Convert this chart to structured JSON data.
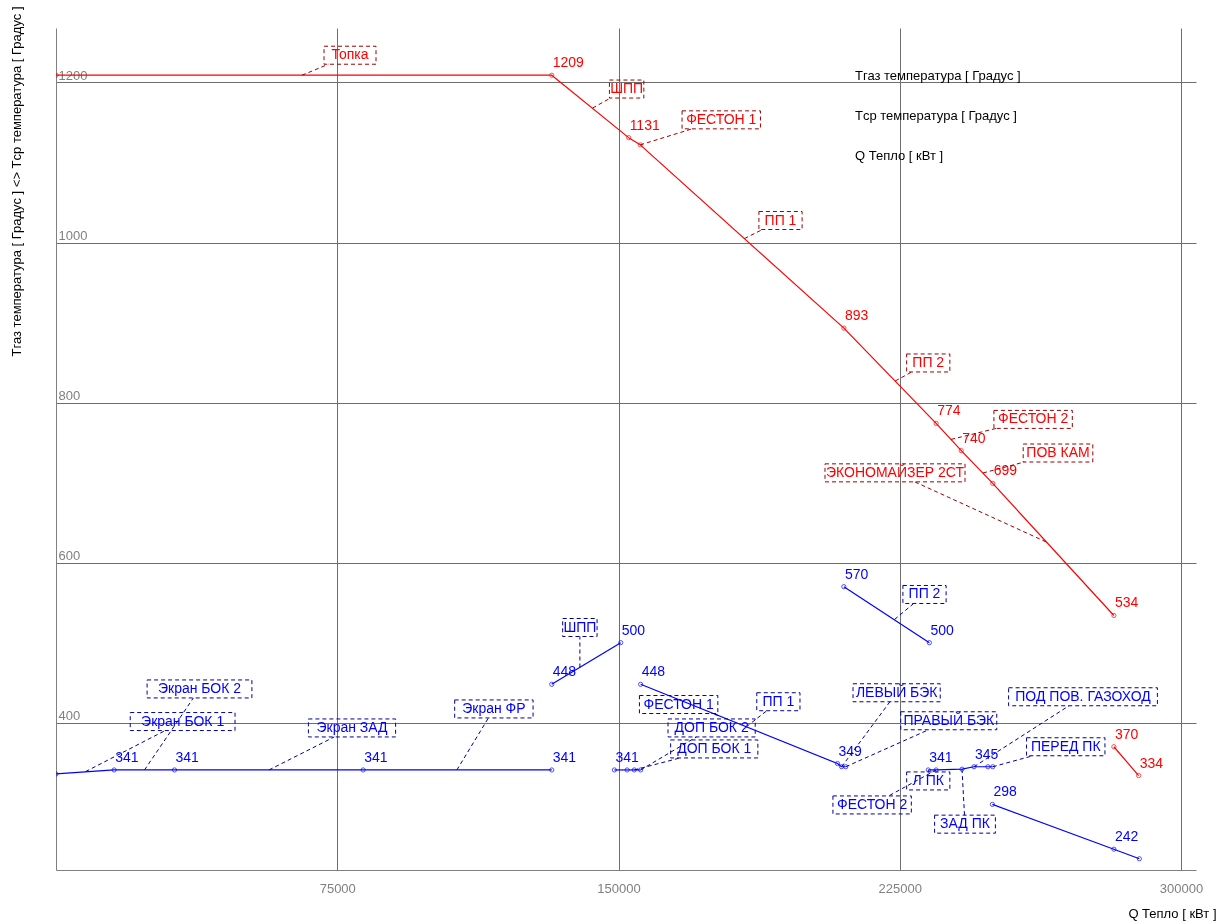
{
  "chart_data": {
    "type": "line",
    "xlabel": "Q Тепло [ кВт ]",
    "ylabel": "Tгаз температура [ Градус ] <> Tср температура [ Градус ]",
    "xlim": [
      0,
      304000
    ],
    "ylim": [
      216,
      1268
    ],
    "xticks": [
      75000,
      150000,
      225000,
      300000
    ],
    "yticks": [
      400,
      600,
      800,
      1000,
      1200
    ],
    "grid": true,
    "marker": "circle",
    "series": [
      {
        "color": "#ff0000",
        "x": [
          0,
          132200,
          152700,
          155800,
          210100,
          234700,
          241400,
          249800,
          282100
        ],
        "values": [
          1209,
          1209,
          1131,
          1122,
          893,
          774,
          740,
          699,
          534
        ],
        "value_labels": [
          null,
          "1209",
          "1131",
          null,
          "893",
          "774",
          "740",
          "699",
          "534"
        ]
      },
      {
        "color": "#ff0000",
        "x": [
          282100,
          288700
        ],
        "values": [
          370,
          334
        ],
        "value_labels": [
          "370",
          "334"
        ]
      },
      {
        "color": "#0000ff",
        "x": [
          0,
          15500,
          31600,
          81900,
          132200
        ],
        "values": [
          336,
          341,
          341,
          341,
          341
        ],
        "value_labels": [
          null,
          "341",
          "341",
          "341",
          "341"
        ]
      },
      {
        "color": "#0000ff",
        "x": [
          132200,
          150600
        ],
        "values": [
          448,
          500
        ],
        "value_labels": [
          "448",
          "500"
        ]
      },
      {
        "color": "#0000ff",
        "x": [
          148900,
          152300,
          154200,
          155900
        ],
        "values": [
          341,
          341,
          341,
          341
        ],
        "value_labels": [
          "341",
          null,
          null,
          null
        ]
      },
      {
        "color": "#0000ff",
        "x": [
          155900,
          208400,
          209500,
          210600
        ],
        "values": [
          448,
          349,
          345,
          345
        ],
        "value_labels": [
          "448",
          "349",
          null,
          null
        ]
      },
      {
        "color": "#0000ff",
        "x": [
          210100,
          232900
        ],
        "values": [
          570,
          500
        ],
        "value_labels": [
          "570",
          "500"
        ]
      },
      {
        "color": "#0000ff",
        "x": [
          232600,
          234700,
          241600,
          244800,
          248500,
          249800
        ],
        "values": [
          341,
          341,
          342,
          345,
          345,
          345
        ],
        "value_labels": [
          "341",
          null,
          null,
          "345",
          null,
          null
        ]
      },
      {
        "color": "#0000ff",
        "x": [
          249700,
          282100,
          288900
        ],
        "values": [
          298,
          242,
          230
        ],
        "value_labels": [
          "298",
          "242",
          null
        ]
      }
    ],
    "annotations": [
      "Tгаз температура [ Градус ]",
      "Tср температура [ Градус ]",
      "Q Тепло [ кВт ]",
      {
        "text": "Топка",
        "x": 65600,
        "y": 1209
      },
      {
        "text": "ШПП",
        "x": 143100,
        "y": 1168
      },
      {
        "text": "ФЕСТОН 1",
        "x": 155800,
        "y": 1122
      },
      {
        "text": "ПП 1",
        "x": 183600,
        "y": 1005
      },
      {
        "text": "ПП 2",
        "x": 223800,
        "y": 827
      },
      {
        "text": "ФЕСТОН 2",
        "x": 238700,
        "y": 754
      },
      {
        "text": "ПОВ КАМ",
        "x": 247200,
        "y": 712
      },
      {
        "text": "ЭКОНОМАЙЗЕР 2СТ",
        "x": 264000,
        "y": 626
      },
      {
        "text": "ШПП",
        "x": 139700,
        "y": 469
      },
      {
        "text": "ПП 2",
        "x": 223600,
        "y": 529
      },
      {
        "text": "Экран БОК 2",
        "x": 23600,
        "y": 341
      },
      {
        "text": "Экран БОК 1",
        "x": 7900,
        "y": 339
      },
      {
        "text": "Экран ЗАД",
        "x": 56800,
        "y": 341
      },
      {
        "text": "Экран ФР",
        "x": 106900,
        "y": 341
      },
      {
        "text": "ФЕСТОН 1",
        "x": 176700,
        "y": 409
      },
      {
        "text": "ПП 1",
        "x": 184100,
        "y": 395
      },
      {
        "text": "ДОП БОК 2",
        "x": 155900,
        "y": 341
      },
      {
        "text": "ДОП БОК 1",
        "x": 154200,
        "y": 341
      },
      {
        "text": "ЛЕВЫЙ БЭК",
        "x": 209500,
        "y": 345
      },
      {
        "text": "ПРАВЫЙ БЭК",
        "x": 210600,
        "y": 345
      },
      {
        "text": "ПОД ПОВ. ГАЗОХОД",
        "x": 244800,
        "y": 345
      },
      {
        "text": "ПЕРЕД ПК",
        "x": 249800,
        "y": 345
      },
      {
        "text": "Л ПК",
        "x": 232600,
        "y": 341
      },
      {
        "text": "ФЕСТОН 2",
        "x": 234700,
        "y": 341
      },
      {
        "text": "ЗАД ПК",
        "x": 241600,
        "y": 342
      }
    ]
  }
}
